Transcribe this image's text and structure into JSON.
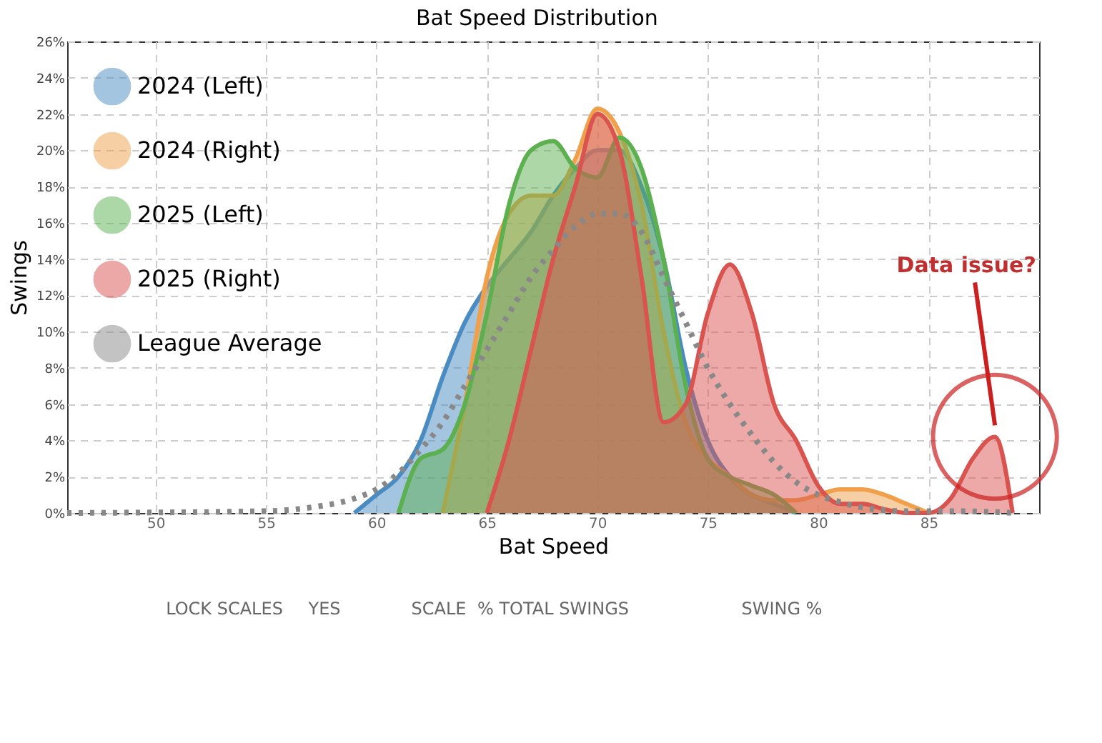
{
  "chart_data": {
    "type": "area",
    "title": "Bat Speed Distribution",
    "xlabel": "Bat Speed",
    "ylabel": "Swings",
    "xlim": [
      46,
      90
    ],
    "xticks": [
      50,
      55,
      60,
      65,
      70,
      75,
      80,
      85
    ],
    "ylim": [
      0,
      26
    ],
    "yticks": [
      {
        "value": 0,
        "label": "0%"
      },
      {
        "value": 2,
        "label": "2%"
      },
      {
        "value": 4,
        "label": "4%"
      },
      {
        "value": 6,
        "label": "6%"
      },
      {
        "value": 8,
        "label": "8%"
      },
      {
        "value": 10,
        "label": "10%"
      },
      {
        "value": 12,
        "label": "12%"
      },
      {
        "value": 14,
        "label": "14%"
      },
      {
        "value": 16,
        "label": "16%"
      },
      {
        "value": 18,
        "label": "18%"
      },
      {
        "value": 20,
        "label": "20%"
      },
      {
        "value": 22,
        "label": "22%"
      },
      {
        "value": 24,
        "label": "24%"
      },
      {
        "value": 26,
        "label": "26%"
      }
    ],
    "grid": true,
    "legend": "top left",
    "series": [
      {
        "name": "2024 (Left)",
        "color": "#4a8cc2",
        "x": [
          59,
          60,
          61,
          62,
          63,
          64,
          65,
          66,
          67,
          68,
          69,
          70,
          71,
          72,
          73,
          74,
          75,
          76,
          77,
          78,
          79
        ],
        "values": [
          0,
          1,
          2,
          4,
          7.5,
          10.5,
          12.5,
          14,
          15.5,
          17.5,
          19,
          20,
          20,
          18,
          14,
          8,
          4,
          2,
          1,
          0.5,
          0
        ]
      },
      {
        "name": "2024 (Right)",
        "color": "#f0a04b",
        "x": [
          63,
          64,
          65,
          66,
          67,
          68,
          69,
          70,
          71,
          72,
          73,
          74,
          75,
          76,
          77,
          78,
          79,
          80,
          81,
          82,
          83,
          84,
          85
        ],
        "values": [
          0,
          6,
          13,
          16.5,
          17.5,
          17.5,
          19.5,
          22.3,
          21,
          17,
          10,
          5,
          3,
          2,
          1,
          0.7,
          0.7,
          1,
          1.3,
          1.3,
          1,
          0.5,
          0
        ]
      },
      {
        "name": "2025 (Left)",
        "color": "#5cb050",
        "x": [
          61,
          62,
          63,
          64,
          65,
          66,
          67,
          68,
          69,
          70,
          71,
          72,
          73,
          74,
          75,
          76,
          77,
          78,
          79
        ],
        "values": [
          0,
          3,
          3.5,
          6,
          11,
          17,
          20,
          20.5,
          19,
          18.5,
          20.7,
          19,
          14,
          7,
          3,
          2,
          1.5,
          1,
          0
        ]
      },
      {
        "name": "2025 (Right)",
        "color": "#d9534f",
        "x": [
          65,
          66,
          67,
          68,
          69,
          70,
          71,
          72,
          73,
          74,
          75,
          76,
          77,
          78,
          79,
          80,
          81,
          82,
          83,
          84,
          85,
          86,
          87,
          88,
          88.8
        ],
        "values": [
          0,
          4,
          9,
          14,
          18,
          22,
          20,
          13,
          5,
          6,
          11,
          13.7,
          11,
          6,
          4,
          1.5,
          0.5,
          0.5,
          0.2,
          0,
          0,
          0.8,
          3,
          4.2,
          0
        ]
      },
      {
        "name": "League Average",
        "color": "#888888",
        "type": "line",
        "line_style": "dotted",
        "x": [
          46,
          55,
          57,
          59,
          60,
          61,
          62,
          63,
          64,
          65,
          66,
          67,
          68,
          69,
          70,
          71,
          72,
          73,
          74,
          75,
          76,
          77,
          78,
          79,
          80,
          81,
          82,
          84,
          86,
          89
        ],
        "values": [
          0,
          0.1,
          0.3,
          0.8,
          1.3,
          2.2,
          3.5,
          5,
          7,
          9,
          11,
          13,
          14.5,
          15.8,
          16.5,
          16.5,
          15.5,
          13,
          10.5,
          8,
          6,
          4.3,
          2.8,
          1.7,
          1,
          0.6,
          0.3,
          0.1,
          0.1,
          0
        ]
      }
    ],
    "annotations": [
      {
        "text": "Data issue?",
        "x": 88,
        "y": 4.2
      },
      "LOCK SCALES",
      "YES",
      "SCALE",
      "% TOTAL SWINGS",
      "SWING %"
    ]
  }
}
